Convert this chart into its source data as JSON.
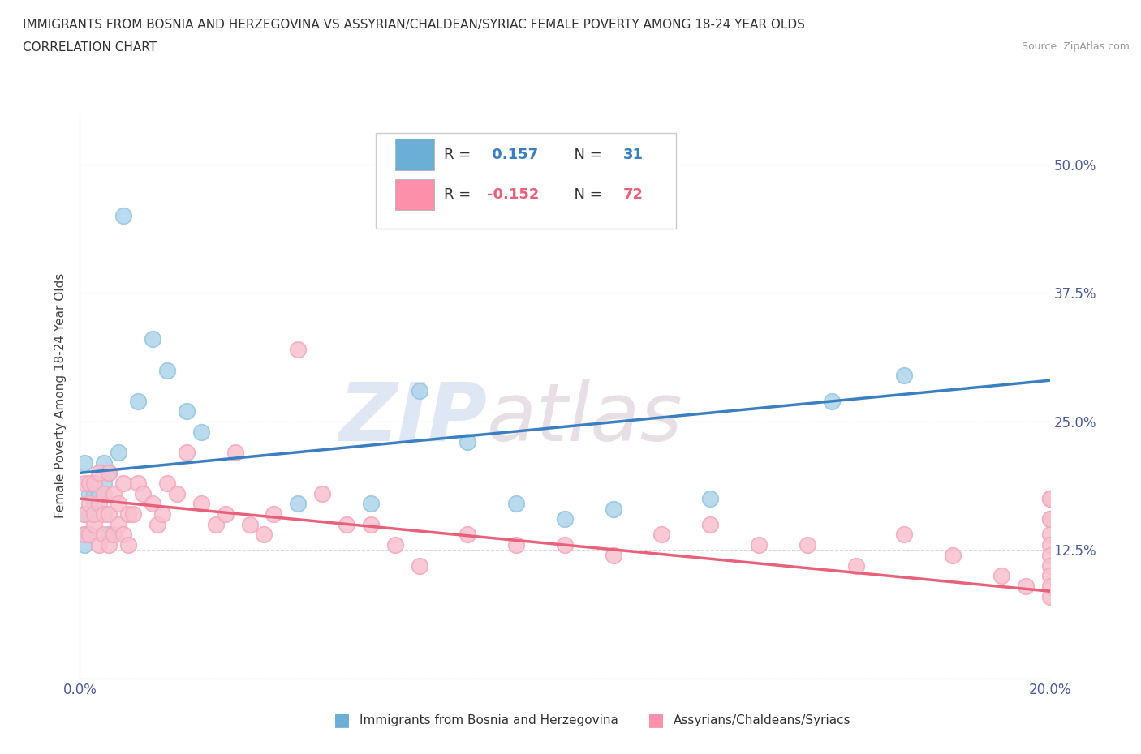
{
  "title_line1": "IMMIGRANTS FROM BOSNIA AND HERZEGOVINA VS ASSYRIAN/CHALDEAN/SYRIAC FEMALE POVERTY AMONG 18-24 YEAR OLDS",
  "title_line2": "CORRELATION CHART",
  "source_text": "Source: ZipAtlas.com",
  "ylabel": "Female Poverty Among 18-24 Year Olds",
  "xlim": [
    0.0,
    0.2
  ],
  "ylim": [
    0.0,
    0.55
  ],
  "xticks": [
    0.0,
    0.04,
    0.08,
    0.12,
    0.16,
    0.2
  ],
  "xticklabels_show": [
    "0.0%",
    "20.0%"
  ],
  "yticks": [
    0.0,
    0.125,
    0.25,
    0.375,
    0.5
  ],
  "yticklabels": [
    "",
    "12.5%",
    "25.0%",
    "37.5%",
    "50.0%"
  ],
  "legend_r1_label": "R = ",
  "legend_r1_val": " 0.157",
  "legend_n1_label": "N = ",
  "legend_n1_val": "31",
  "legend_r2_label": "R = ",
  "legend_r2_val": "-0.152",
  "legend_n2_label": "N = ",
  "legend_n2_val": "72",
  "blue_color": "#92c5de",
  "pink_color": "#f4a6bb",
  "blue_fill": "#aed4ea",
  "pink_fill": "#f8c0ce",
  "blue_line_color": "#3a7fc1",
  "pink_line_color": "#e8607a",
  "legend_blue_color": "#6baed6",
  "legend_pink_color": "#fc8fa9",
  "watermark_zip": "ZIP",
  "watermark_atlas": "atlas",
  "label1": "Immigrants from Bosnia and Herzegovina",
  "label2": "Assyrians/Chaldeans/Syriacs",
  "blue_scatter_x": [
    0.001,
    0.001,
    0.001,
    0.001,
    0.002,
    0.002,
    0.002,
    0.003,
    0.003,
    0.004,
    0.005,
    0.005,
    0.006,
    0.006,
    0.008,
    0.009,
    0.012,
    0.015,
    0.018,
    0.022,
    0.025,
    0.045,
    0.06,
    0.07,
    0.08,
    0.09,
    0.1,
    0.11,
    0.13,
    0.155,
    0.17
  ],
  "blue_scatter_y": [
    0.21,
    0.16,
    0.14,
    0.13,
    0.18,
    0.16,
    0.14,
    0.18,
    0.17,
    0.18,
    0.21,
    0.19,
    0.2,
    0.14,
    0.22,
    0.45,
    0.27,
    0.33,
    0.3,
    0.26,
    0.24,
    0.17,
    0.17,
    0.28,
    0.23,
    0.17,
    0.155,
    0.165,
    0.175,
    0.27,
    0.295
  ],
  "pink_scatter_x": [
    0.001,
    0.001,
    0.001,
    0.002,
    0.002,
    0.002,
    0.003,
    0.003,
    0.003,
    0.004,
    0.004,
    0.004,
    0.005,
    0.005,
    0.005,
    0.006,
    0.006,
    0.006,
    0.007,
    0.007,
    0.008,
    0.008,
    0.009,
    0.009,
    0.01,
    0.01,
    0.011,
    0.012,
    0.013,
    0.015,
    0.016,
    0.017,
    0.018,
    0.02,
    0.022,
    0.025,
    0.028,
    0.03,
    0.032,
    0.035,
    0.038,
    0.04,
    0.045,
    0.05,
    0.055,
    0.06,
    0.065,
    0.07,
    0.08,
    0.09,
    0.1,
    0.11,
    0.12,
    0.13,
    0.14,
    0.15,
    0.16,
    0.17,
    0.18,
    0.19,
    0.195,
    0.2,
    0.2,
    0.2,
    0.2,
    0.2,
    0.2,
    0.2,
    0.2,
    0.2,
    0.2,
    0.2
  ],
  "pink_scatter_y": [
    0.16,
    0.14,
    0.19,
    0.17,
    0.14,
    0.19,
    0.15,
    0.16,
    0.19,
    0.13,
    0.17,
    0.2,
    0.14,
    0.16,
    0.18,
    0.13,
    0.16,
    0.2,
    0.14,
    0.18,
    0.15,
    0.17,
    0.14,
    0.19,
    0.13,
    0.16,
    0.16,
    0.19,
    0.18,
    0.17,
    0.15,
    0.16,
    0.19,
    0.18,
    0.22,
    0.17,
    0.15,
    0.16,
    0.22,
    0.15,
    0.14,
    0.16,
    0.32,
    0.18,
    0.15,
    0.15,
    0.13,
    0.11,
    0.14,
    0.13,
    0.13,
    0.12,
    0.14,
    0.15,
    0.13,
    0.13,
    0.11,
    0.14,
    0.12,
    0.1,
    0.09,
    0.175,
    0.155,
    0.14,
    0.13,
    0.12,
    0.11,
    0.1,
    0.09,
    0.08,
    0.175,
    0.155
  ],
  "blue_trend_x": [
    0.0,
    0.2
  ],
  "blue_trend_y": [
    0.2,
    0.29
  ],
  "pink_trend_x": [
    0.0,
    0.2
  ],
  "pink_trend_y": [
    0.175,
    0.085
  ],
  "background_color": "#ffffff",
  "grid_color": "#d8d8d8"
}
